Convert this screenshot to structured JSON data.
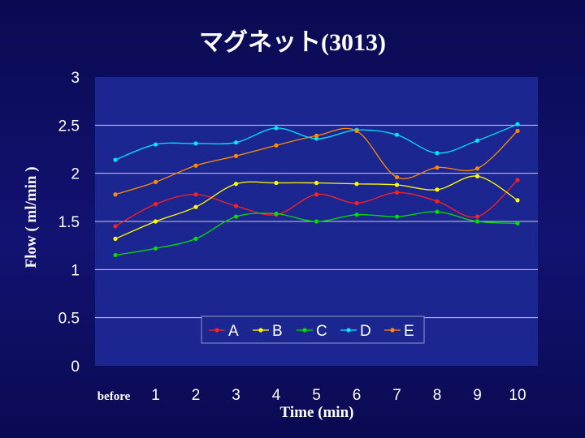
{
  "chart_data": {
    "type": "line",
    "title": "マグネット(3013)",
    "xlabel": "Time (min)",
    "ylabel": "Flow ( ml/min )",
    "categories": [
      "before",
      "1",
      "2",
      "3",
      "4",
      "5",
      "6",
      "7",
      "8",
      "9",
      "10"
    ],
    "ylim": [
      0,
      3
    ],
    "yticks": [
      "0",
      "0.5",
      "1",
      "1.5",
      "2",
      "2.5",
      "3"
    ],
    "grid": true,
    "legend_position": "bottom-center",
    "series": [
      {
        "name": "A",
        "color": "#ff2020",
        "values": [
          1.45,
          1.68,
          1.78,
          1.66,
          1.57,
          1.78,
          1.69,
          1.8,
          1.71,
          1.55,
          1.93
        ]
      },
      {
        "name": "B",
        "color": "#ffff00",
        "values": [
          1.32,
          1.5,
          1.65,
          1.89,
          1.9,
          1.9,
          1.89,
          1.88,
          1.83,
          1.97,
          1.72
        ]
      },
      {
        "name": "C",
        "color": "#00e000",
        "values": [
          1.15,
          1.22,
          1.32,
          1.55,
          1.58,
          1.5,
          1.57,
          1.55,
          1.6,
          1.5,
          1.48
        ]
      },
      {
        "name": "D",
        "color": "#00e8ff",
        "values": [
          2.14,
          2.3,
          2.31,
          2.32,
          2.47,
          2.36,
          2.45,
          2.4,
          2.21,
          2.34,
          2.51
        ]
      },
      {
        "name": "E",
        "color": "#ff8c00",
        "values": [
          1.78,
          1.91,
          2.08,
          2.18,
          2.29,
          2.39,
          2.44,
          1.96,
          2.06,
          2.05,
          2.44
        ]
      }
    ]
  }
}
